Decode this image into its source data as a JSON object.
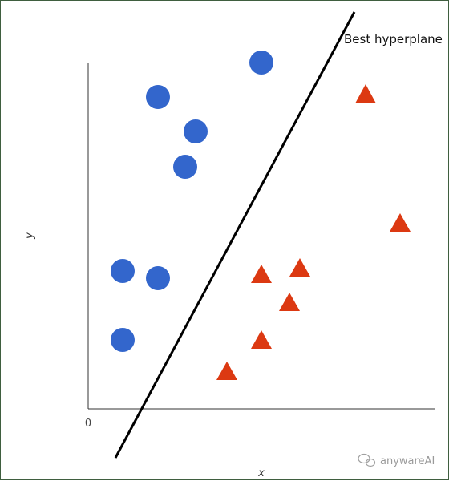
{
  "diagram": {
    "hyperplane_label": "Best hyperplane",
    "xlabel": "x",
    "ylabel": "y",
    "origin_label": "0",
    "colors": {
      "circle": "#3366cc",
      "triangle": "#dc3912",
      "line": "#000000"
    },
    "shapes": {
      "class_a": "circle",
      "class_b": "triangle"
    }
  },
  "watermark": {
    "text": "anywareAI",
    "icon": "wechat-icon"
  }
}
